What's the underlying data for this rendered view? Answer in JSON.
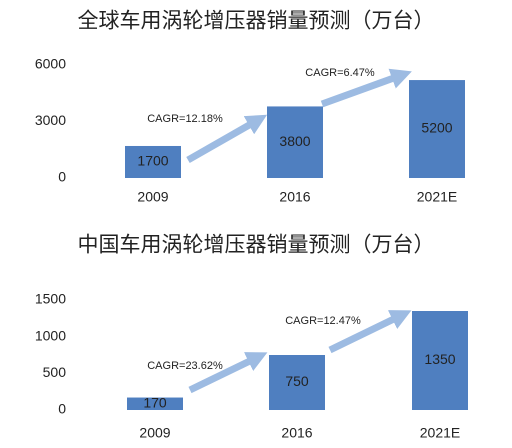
{
  "chart_data": [
    {
      "type": "bar",
      "title": "全球车用涡轮增压器销量预测（万台）",
      "categories": [
        "2009",
        "2016",
        "2021E"
      ],
      "values": [
        1700,
        3800,
        5200
      ],
      "color": "#4f7fc0",
      "ylim": [
        0,
        6000
      ],
      "yticks": [
        0,
        3000,
        6000
      ],
      "grid": false,
      "annotations": [
        "CAGR=12.18%",
        "CAGR=6.47%"
      ]
    },
    {
      "type": "bar",
      "title": "中国车用涡轮增压器销量预测（万台）",
      "categories": [
        "2009",
        "2016",
        "2021E"
      ],
      "values": [
        170,
        750,
        1350
      ],
      "color": "#4f7fc0",
      "ylim": [
        0,
        1500
      ],
      "yticks": [
        0,
        500,
        1000,
        1500
      ],
      "grid": false,
      "annotations": [
        "CAGR=23.62%",
        "CAGR=12.47%"
      ]
    }
  ]
}
